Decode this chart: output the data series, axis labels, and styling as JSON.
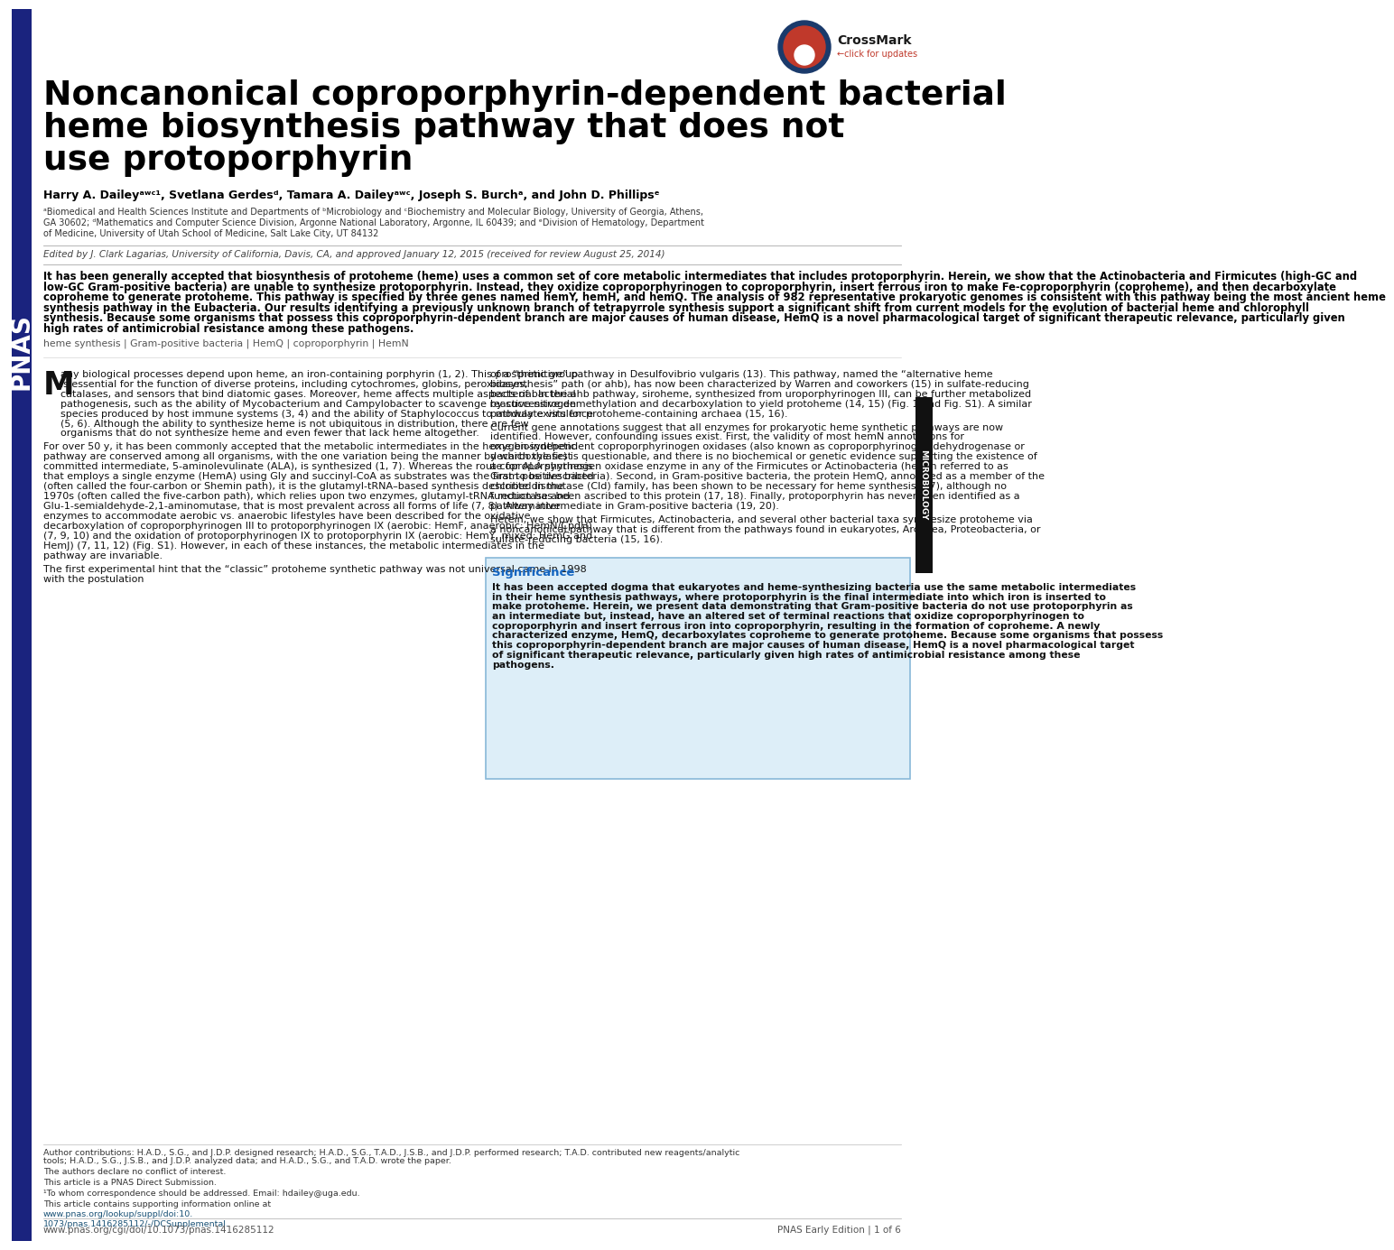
{
  "title_line1": "Noncanonical coproporphyrin-dependent bacterial",
  "title_line2": "heme biosynthesis pathway that does not",
  "title_line3": "use protoporphyrin",
  "authors": "Harry A. Daileyᵃʷᶜ¹, Svetlana Gerdesᵈ, Tamara A. Daileyᵃʷᶜ, Joseph S. Burchᵃ, and John D. Phillipsᵉ",
  "affil1": "ᵃBiomedical and Health Sciences Institute and Departments of ᵇMicrobiology and ᶜBiochemistry and Molecular Biology, University of Georgia, Athens,",
  "affil2": "GA 30602; ᵈMathematics and Computer Science Division, Argonne National Laboratory, Argonne, IL 60439; and ᵉDivision of Hematology, Department",
  "affil3": "of Medicine, University of Utah School of Medicine, Salt Lake City, UT 84132",
  "edited_by": "Edited by J. Clark Lagarias, University of California, Davis, CA, and approved January 12, 2015 (received for review August 25, 2014)",
  "abstract": "It has been generally accepted that biosynthesis of protoheme (heme) uses a common set of core metabolic intermediates that includes protoporphyrin. Herein, we show that the Actinobacteria and Firmicutes (high-GC and low-GC Gram-positive bacteria) are unable to synthesize protoporphyrin. Instead, they oxidize coproporphyrinogen to coproporphyrin, insert ferrous iron to make Fe-coproporphyrin (coproheme), and then decarboxylate coproheme to generate protoheme. This pathway is specified by three genes named hemY, hemH, and hemQ. The analysis of 982 representative prokaryotic genomes is consistent with this pathway being the most ancient heme synthesis pathway in the Eubacteria. Our results identifying a previously unknown branch of tetrapyrrole synthesis support a significant shift from current models for the evolution of bacterial heme and chlorophyll synthesis. Because some organisms that possess this coproporphyrin-dependent branch are major causes of human disease, HemQ is a novel pharmacological target of significant therapeutic relevance, particularly given high rates of antimicrobial resistance among these pathogens.",
  "keywords": "heme synthesis | Gram-positive bacteria | HemQ | coproporphyrin | HemN",
  "body_col1_p1": "any biological processes depend upon heme, an iron-containing porphyrin (1, 2). This prosthetic group is essential for the function of diverse proteins, including cytochromes, globins, peroxidases, catalases, and sensors that bind diatomic gases. Moreover, heme affects multiple aspects of bacterial pathogenesis, such as the ability of Mycobacterium and Campylobacter to scavenge reactive nitrogen species produced by host immune systems (3, 4) and the ability of Staphylococcus to modulate virulence (5, 6). Although the ability to synthesize heme is not ubiquitous in distribution, there are few organisms that do not synthesize heme and even fewer that lack heme altogether.",
  "body_col1_p2": "For over 50 y, it has been commonly accepted that the metabolic intermediates in the heme biosynthetic pathway are conserved among all organisms, with the one variation being the manner by which the first committed intermediate, 5-aminolevulinate (ALA), is synthesized (1, 7). Whereas the route for ALA synthesis that employs a single enzyme (HemA) using Gly and succinyl-CoA as substrates was the first to be described (often called the four-carbon or Shemin path), it is the glutamyl-tRNA–based synthesis described in the 1970s (often called the five-carbon path), which relies upon two enzymes, glutamyl-tRNA reductase and Glu-1-semialdehyde-2,1-aminomutase, that is most prevalent across all forms of life (7, 8). Alternative enzymes to accommodate aerobic vs. anaerobic lifestyles have been described for the oxidative decarboxylation of coproporphyrinogen III to protoporphyrinogen IX (aerobic: HemF, anaerobic: HemN/CpdH) (7, 9, 10) and the oxidation of protoporphyrinogen IX to protoporphyrin IX (aerobic: HemY, mixed: HemG and HemJ) (7, 11, 12) (Fig. S1). However, in each of these instances, the metabolic intermediates in the pathway are invariable.",
  "body_col1_p3": "The first experimental hint that the “classic” protoheme synthetic pathway was not universal came in 1998 with the postulation",
  "body_col2_p1": "of a “primitive” pathway in Desulfovibrio vulgaris (13). This pathway, named the “alternative heme biosynthesis” path (or ahb), has now been characterized by Warren and coworkers (15) in sulfate-reducing bacteria. In the ahb pathway, siroheme, synthesized from uroporphyrinogen III, can be further metabolized by successive demethylation and decarboxylation to yield protoheme (14, 15) (Fig. 1 and Fig. S1). A similar pathway exists for protoheme-containing archaea (15, 16).",
  "body_col2_p2": "Current gene annotations suggest that all enzymes for prokaryotic heme synthetic pathways are now identified. However, confounding issues exist. First, the validity of most hemN annotations for oxygen-independent coproporphyrinogen oxidases (also known as coproporphyrinogen dehydrogenase or decarboxylase) is questionable, and there is no biochemical or genetic evidence supporting the existence of a coproporphyrinogen oxidase enzyme in any of the Firmicutes or Actinobacteria (herein referred to as Gram-positive bacteria). Second, in Gram-positive bacteria, the protein HemQ, annotated as a member of the chlorite dismutase (Cld) family, has been shown to be necessary for heme synthesis (17), although no function has been ascribed to this protein (17, 18). Finally, protoporphyrin has never been identified as a pathway intermediate in Gram-positive bacteria (19, 20).",
  "body_col2_p3": "Herein, we show that Firmicutes, Actinobacteria, and several other bacterial taxa synthesize protoheme via a noncanonical pathway that is different from the pathways found in eukaryotes, Archaea, Proteobacteria, or sulfate-reducing bacteria (15, 16).",
  "sig_title": "Significance",
  "sig_body": "It has been accepted dogma that eukaryotes and heme-synthesizing bacteria use the same metabolic intermediates in their heme synthesis pathways, where protoporphyrin is the final intermediate into which iron is inserted to make protoheme. Herein, we present data demonstrating that Gram-positive bacteria do not use protoporphyrin as an intermediate but, instead, have an altered set of terminal reactions that oxidize coproporphyrinogen to coproporphyrin and insert ferrous iron into coproporphyrin, resulting in the formation of coproheme. A newly characterized enzyme, HemQ, decarboxylates coproheme to generate protoheme. Because some organisms that possess this coproporphyrin-dependent branch are major causes of human disease, HemQ is a novel pharmacological target of significant therapeutic relevance, particularly given high rates of antimicrobial resistance among these pathogens.",
  "author_contrib": "Author contributions: H.A.D., S.G., and J.D.P. designed research; H.A.D., S.G., T.A.D., J.S.B., and J.D.P. performed research; T.A.D. contributed new reagents/analytic tools; H.A.D., S.G., J.S.B., and J.D.P. analyzed data; and H.A.D., S.G., and T.A.D. wrote the paper.",
  "conflict": "The authors declare no conflict of interest.",
  "direct_sub": "This article is a PNAS Direct Submission.",
  "correspondence": "¹To whom correspondence should be addressed. Email: hdailey@uga.edu.",
  "supplemental_pre": "This article contains supporting information online at ",
  "supplemental_url": "www.pnas.org/lookup/suppl/doi:10.",
  "supplemental_url2": "1073/pnas.1416285112/-/DCSupplemental.",
  "footer_left": "www.pnas.org/cgi/doi/10.1073/pnas.1416285112",
  "footer_right": "PNAS Early Edition | 1 of 6",
  "sidebar_color": "#1a237e",
  "micro_color": "#111111",
  "title_color": "#000000",
  "abstract_color": "#000000",
  "body_color": "#111111",
  "keyword_color": "#555555",
  "edited_color": "#444444",
  "affil_color": "#333333",
  "sig_title_color": "#1565c0",
  "sig_body_color": "#111111",
  "sig_bg": "#ddeef8",
  "sig_border": "#88b8d8",
  "footer_color": "#555555",
  "url_color": "#1a5276",
  "crossmark_blue": "#1a3a6b",
  "crossmark_red": "#c0392b"
}
